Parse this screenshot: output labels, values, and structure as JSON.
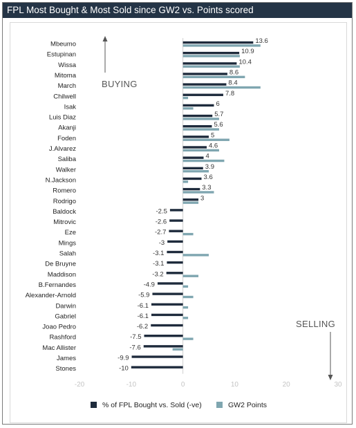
{
  "title": "FPL Most Bought & Most Sold since GW2 vs. Points scored",
  "colors": {
    "bought": "#1e2b3c",
    "points": "#7fa6b0",
    "title_bg": "#243446"
  },
  "chart_data": {
    "type": "bar",
    "orientation": "horizontal",
    "title": "FPL Most Bought & Most Sold since GW2 vs. Points scored",
    "categories": [
      "Mbeumo",
      "Estupinan",
      "Wissa",
      "Mitoma",
      "March",
      "Chilwell",
      "Isak",
      "Luis Diaz",
      "Akanji",
      "Foden",
      "J.Alvarez",
      "Saliba",
      "Walker",
      "N.Jackson",
      "Romero",
      "Rodrigo",
      "Baldock",
      "Mitrovic",
      "Eze",
      "Mings",
      "Salah",
      "De Bruyne",
      "Maddison",
      "B.Fernandes",
      "Alexander-Arnold",
      "Darwin",
      "Gabriel",
      "Joao Pedro",
      "Rashford",
      "Mac Allister",
      "James",
      "Stones"
    ],
    "series": [
      {
        "name": "% of FPL Bought vs. Sold (-ve)",
        "values": [
          13.6,
          10.9,
          10.4,
          8.6,
          8.4,
          7.8,
          6,
          5.7,
          5.6,
          5,
          4.6,
          4,
          3.9,
          3.6,
          3.3,
          3,
          -2.5,
          -2.6,
          -2.7,
          -3,
          -3.1,
          -3.1,
          -3.2,
          -4.9,
          -5.9,
          -6.1,
          -6.1,
          -6.2,
          -7.5,
          -7.6,
          -9.9,
          -10
        ]
      },
      {
        "name": "GW2 Points",
        "values": [
          15,
          11,
          11,
          12,
          15,
          1,
          2,
          7,
          7,
          9,
          7,
          8,
          5,
          1,
          6,
          3,
          0,
          0,
          2,
          0,
          5,
          0,
          3,
          1,
          2,
          1,
          1,
          0,
          2,
          -2,
          0,
          0
        ]
      }
    ],
    "data_labels": [
      "13.6",
      "10.9",
      "10.4",
      "8.6",
      "8.4",
      "7.8",
      "6",
      "5.7",
      "5.6",
      "5",
      "4.6",
      "4",
      "3.9",
      "3.6",
      "3.3",
      "3",
      "-2.5",
      "-2.6",
      "-2.7",
      "-3",
      "-3.1",
      "-3.1",
      "-3.2",
      "-4.9",
      "-5.9",
      "-6.1",
      "-6.1",
      "-6.2",
      "-7.5",
      "-7.6",
      "-9.9",
      "-10"
    ],
    "xlim": [
      -20,
      30
    ],
    "xticks": [
      "-20",
      "-10",
      "0",
      "10",
      "20",
      "30"
    ],
    "grid": false,
    "legend": "bottom",
    "annotations": {
      "buying": "BUYING",
      "selling": "SELLING"
    }
  }
}
